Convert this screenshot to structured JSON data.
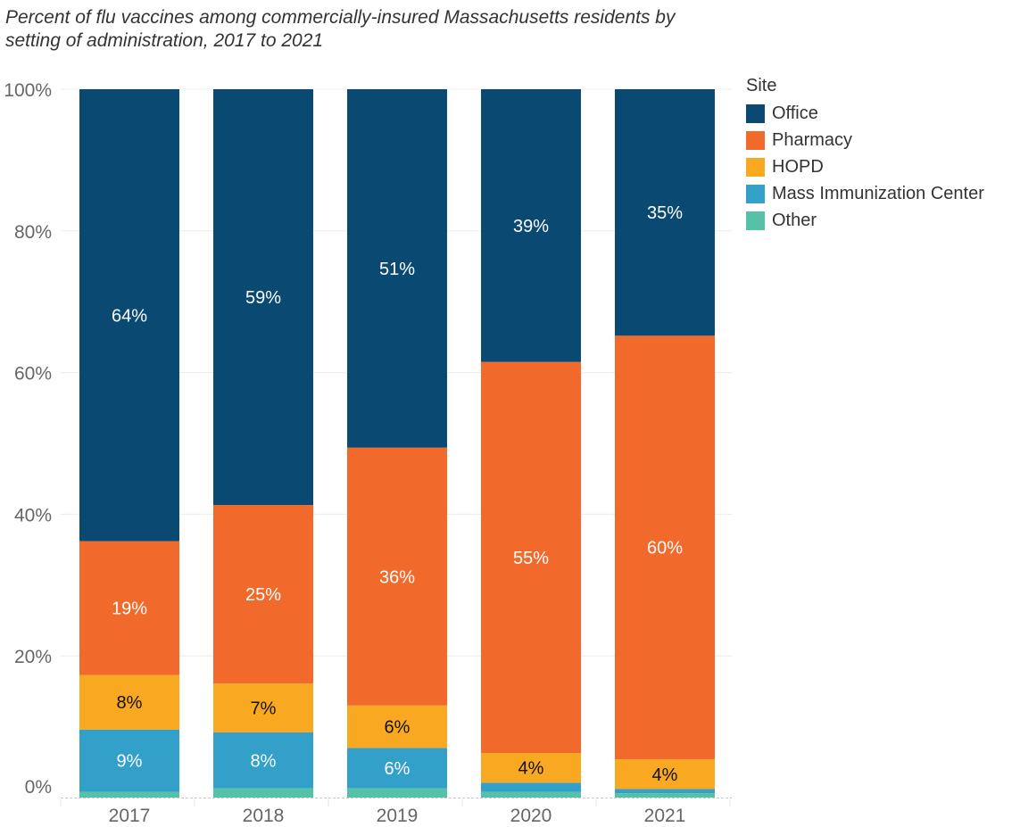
{
  "chart_data": {
    "type": "bar",
    "stacked": true,
    "title": "Percent of flu vaccines among commercially-insured Massachusetts residents by setting of administration, 2017 to 2021",
    "xlabel": "",
    "ylabel": "",
    "ylim": [
      0,
      100
    ],
    "yticks": [
      "0%",
      "20%",
      "40%",
      "60%",
      "80%",
      "100%"
    ],
    "ytick_values": [
      0,
      20,
      40,
      60,
      80,
      100
    ],
    "grid": true,
    "categories": [
      "2017",
      "2018",
      "2019",
      "2020",
      "2021"
    ],
    "legend": {
      "title": "Site",
      "position": "right"
    },
    "series": [
      {
        "name": "Other",
        "color": "#55c1a7",
        "values": [
          0.8,
          1.3,
          1.3,
          0.8,
          0.6
        ],
        "labels": [
          "",
          "",
          "",
          "",
          ""
        ],
        "label_color": "#ffffff"
      },
      {
        "name": "Mass Immunization Center",
        "color": "#32a0c8",
        "values": [
          8.8,
          7.9,
          5.7,
          1.3,
          0.6
        ],
        "labels": [
          "9%",
          "8%",
          "6%",
          "",
          ""
        ],
        "label_color": "#ffffff"
      },
      {
        "name": "HOPD",
        "color": "#f8a921",
        "values": [
          7.7,
          6.9,
          6.0,
          4.2,
          4.2
        ],
        "labels": [
          "8%",
          "7%",
          "6%",
          "4%",
          "4%"
        ],
        "label_color": "#111111"
      },
      {
        "name": "Pharmacy",
        "color": "#f1692b",
        "values": [
          18.9,
          25.2,
          36.4,
          55.2,
          59.8
        ],
        "labels": [
          "19%",
          "25%",
          "36%",
          "55%",
          "60%"
        ],
        "label_color": "#ffffff"
      },
      {
        "name": "Office",
        "color": "#0a4a72",
        "values": [
          63.8,
          58.7,
          50.6,
          38.5,
          34.8
        ],
        "labels": [
          "64%",
          "59%",
          "51%",
          "39%",
          "35%"
        ],
        "label_color": "#ffffff"
      }
    ],
    "legend_order": [
      "Office",
      "Pharmacy",
      "HOPD",
      "Mass Immunization Center",
      "Other"
    ]
  },
  "colors": {
    "axis_text": "#666666",
    "gridline": "#ececec",
    "baseline": "#c8c8c8"
  }
}
